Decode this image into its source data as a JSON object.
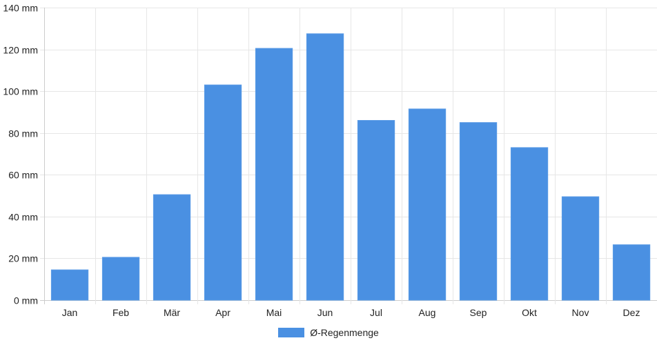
{
  "chart_data": {
    "type": "bar",
    "categories": [
      "Jan",
      "Feb",
      "Mär",
      "Apr",
      "Mai",
      "Jun",
      "Jul",
      "Aug",
      "Sep",
      "Okt",
      "Nov",
      "Dez"
    ],
    "series": [
      {
        "name": "Ø-Regenmenge",
        "values": [
          14.5,
          20.5,
          50.5,
          103,
          120.5,
          127.5,
          86,
          91.5,
          85,
          73,
          49.5,
          26.5
        ],
        "color": "#4a90e2"
      }
    ],
    "ylim": [
      0,
      140
    ],
    "y_ticks": [
      0,
      20,
      40,
      60,
      80,
      100,
      120,
      140
    ],
    "y_tick_suffix": " mm",
    "grid": true,
    "legend_position": "bottom-center"
  }
}
